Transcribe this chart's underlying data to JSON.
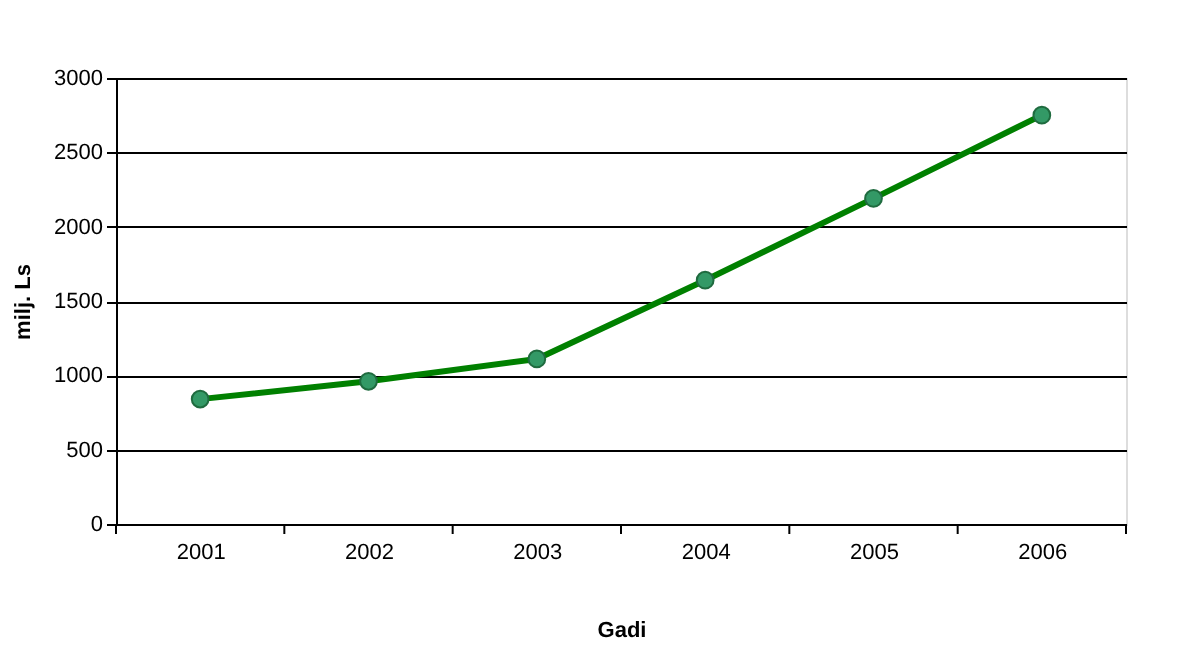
{
  "chart_data": {
    "type": "line",
    "xlabel": "Gadi",
    "ylabel": "milj. Ls",
    "categories": [
      "2001",
      "2002",
      "2003",
      "2004",
      "2005",
      "2006"
    ],
    "series": [
      {
        "color": "#008000",
        "values": [
          840,
          960,
          1110,
          1640,
          2190,
          2750
        ]
      }
    ],
    "ylim": [
      0,
      3000
    ],
    "yticks": [
      0,
      500,
      1000,
      1500,
      2000,
      2500,
      3000
    ],
    "grid": "y",
    "marker": "circle",
    "line_style": "solid",
    "legend": false
  }
}
